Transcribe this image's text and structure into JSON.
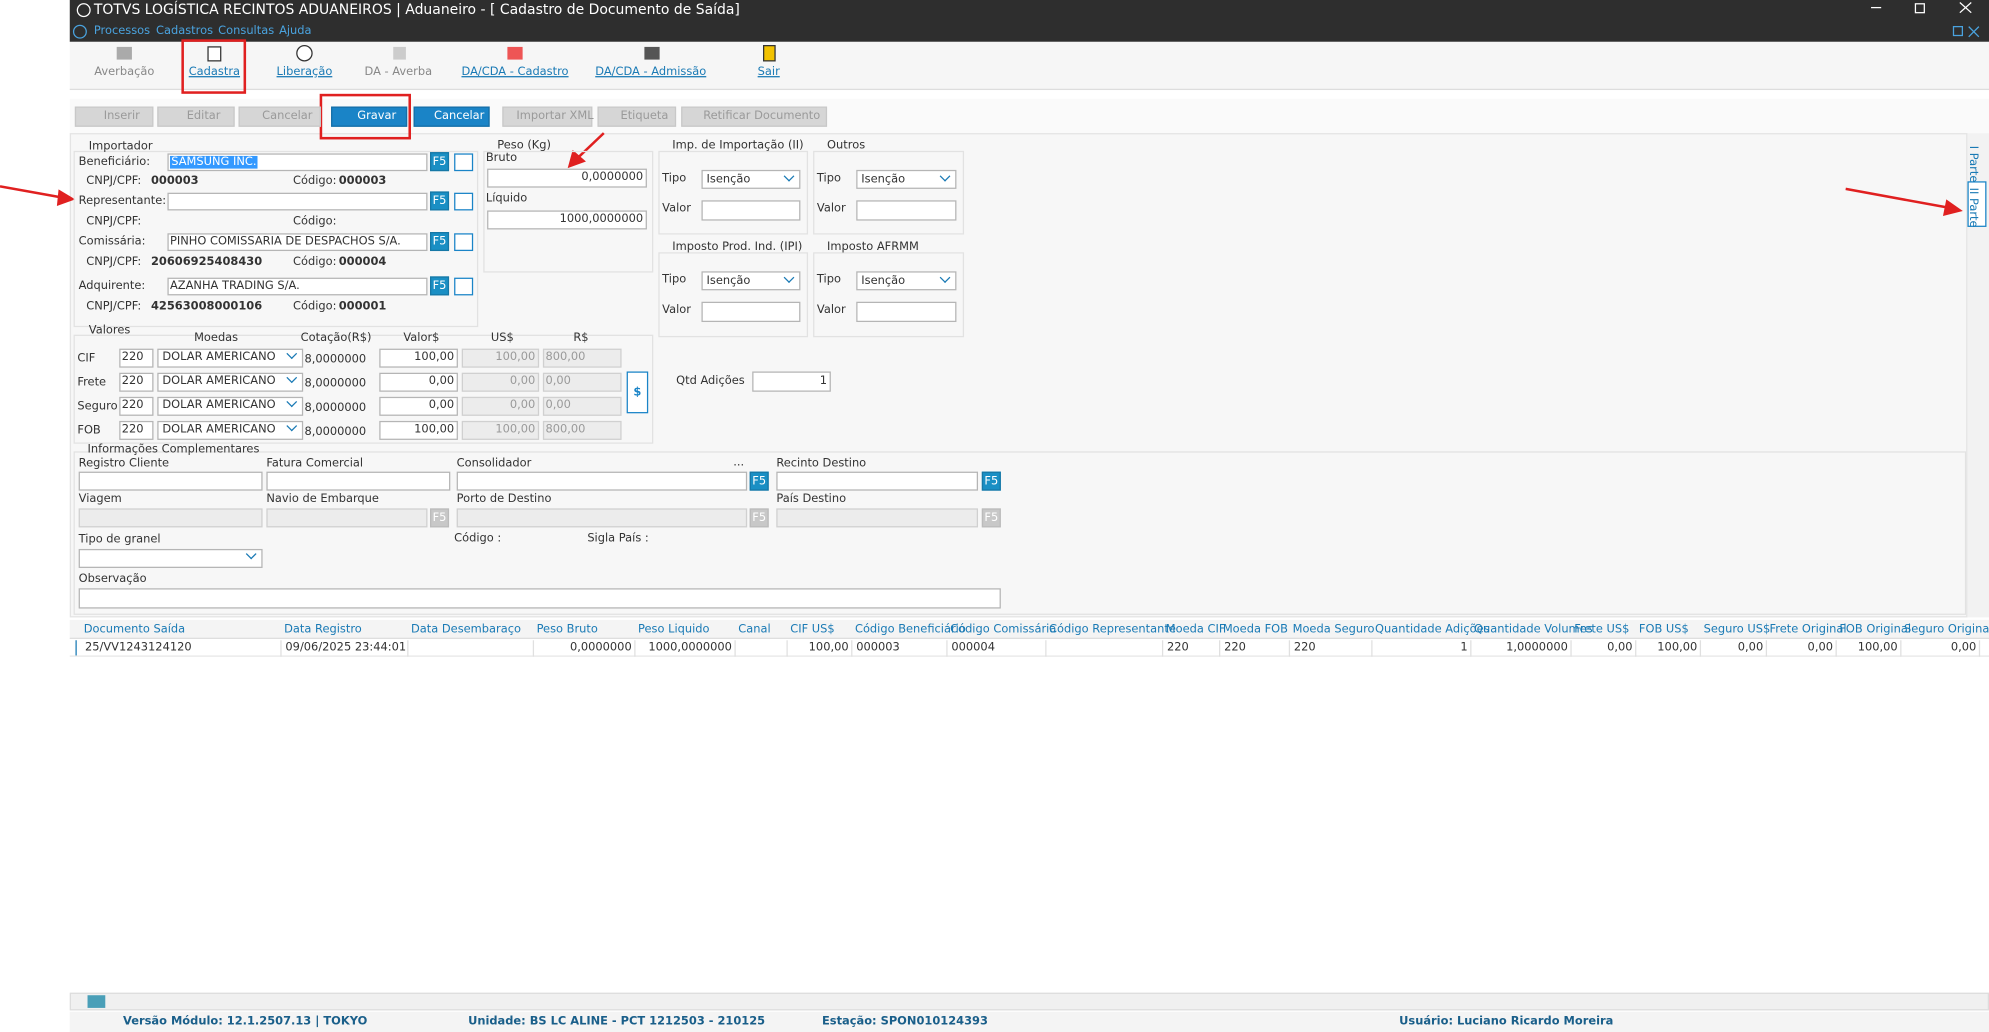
{
  "window": {
    "title": "TOTVS LOGÍSTICA RECINTOS ADUANEIROS | Aduaneiro - [ Cadastro de Documento de Saída]",
    "menu": [
      "Processos",
      "Cadastros",
      "Consultas",
      "Ajuda"
    ]
  },
  "toolbar": [
    "Averbação",
    "Cadastra",
    "Liberação",
    "DA - Averba",
    "DA/CDA - Cadastro",
    "DA/CDA - Admissão",
    "Sair"
  ],
  "actions": [
    "Inserir",
    "Editar",
    "Cancelar",
    "Gravar",
    "Cancelar",
    "Importar XML",
    "Etiqueta",
    "Retificar Documento"
  ],
  "common": {
    "f5": "F5",
    "cnpj": "CNPJ/CPF:",
    "codigo": "Código:",
    "tipo": "Tipo",
    "valor": "Valor",
    "isencao": "Isenção",
    "money_button": "$"
  },
  "importador": {
    "title": "Importador",
    "rows": [
      {
        "label": "Beneficiário:",
        "name": "SAMSUNG INC.",
        "cnpj": "000003",
        "codigo": "000003"
      },
      {
        "label": "Representante:"
      },
      {
        "label": "Comissária:",
        "name": "PINHO COMISSARIA DE DESPACHOS S/A.",
        "cnpj": "20606925408430",
        "codigo": "000004"
      },
      {
        "label": "Adquirente:",
        "name": "AZANHA TRADING S/A.",
        "cnpj": "42563008000106",
        "codigo": "000001"
      }
    ]
  },
  "peso": {
    "title": "Peso (Kg)",
    "bruto_label": "Bruto",
    "bruto": "0,0000000",
    "liquido_label": "Líquido",
    "liquido": "1000,0000000"
  },
  "impostos": [
    {
      "title": "Imp. de Importação (II)"
    },
    {
      "title": "Outros"
    },
    {
      "title": "Imposto Prod. Ind. (IPI)"
    },
    {
      "title": "Imposto AFRMM"
    }
  ],
  "valores": {
    "title": "Valores",
    "headers": [
      "Moedas",
      "Cotação(R$)",
      "Valor$",
      "US$",
      "R$"
    ],
    "rows": [
      {
        "label": "CIF",
        "codigo": "220",
        "moeda": "DOLAR AMERICANO",
        "cotacao": "8,0000000",
        "valor": "100,00",
        "usd": "100,00",
        "brl": "800,00"
      },
      {
        "label": "Frete",
        "codigo": "220",
        "moeda": "DOLAR AMERICANO",
        "cotacao": "8,0000000",
        "valor": "0,00",
        "usd": "0,00",
        "brl": "0,00"
      },
      {
        "label": "Seguro",
        "codigo": "220",
        "moeda": "DOLAR AMERICANO",
        "cotacao": "8,0000000",
        "valor": "0,00",
        "usd": "0,00",
        "brl": "0,00"
      },
      {
        "label": "FOB",
        "codigo": "220",
        "moeda": "DOLAR AMERICANO",
        "cotacao": "8,0000000",
        "valor": "100,00",
        "usd": "100,00",
        "brl": "800,00"
      }
    ]
  },
  "qtd_adicoes": {
    "label": "Qtd Adições",
    "value": "1"
  },
  "complementares": {
    "title": "Informações Complementares",
    "fields": [
      "Registro Cliente",
      "Fatura Comercial",
      "Consolidador",
      "Recinto Destino",
      "Viagem",
      "Navio de Embarque",
      "Porto de Destino",
      "País Destino",
      "Tipo de granel",
      "Código :",
      "Sigla País :",
      "Observação"
    ],
    "ellipsis": "..."
  },
  "grid": {
    "headers": [
      "Documento Saída",
      "Data Registro",
      "Data  Desembaraço",
      "Peso Bruto",
      "Peso Liquido",
      "Canal",
      "CIF US$",
      "Código Beneficiário",
      "Código Comissária",
      "Código Representante",
      "Moeda CIF",
      "Moeda FOB",
      "Moeda Seguro",
      "Quantidade Adições",
      "Quantidade Volumes",
      "Frete US$",
      "FOB US$",
      "Seguro US$",
      "Frete Original",
      "FOB Original",
      "Seguro Original"
    ],
    "rows": [
      [
        "25/VV1243124120",
        "09/06/2025 23:44:01",
        null,
        "0,0000000",
        "1000,0000000",
        null,
        "100,00",
        "000003",
        "000004",
        null,
        "220",
        "220",
        "220",
        "1",
        "1,0000000",
        "0,00",
        "100,00",
        "0,00",
        "0,00",
        "100,00",
        "0,00"
      ]
    ]
  },
  "tabs": [
    "I Parte",
    "II Parte"
  ],
  "status": [
    "Versão Módulo:  12.1.2507.13  |  TOKYO",
    "Unidade: BS LC ALINE - PCT 1212503 - 210125",
    "Estação: SPON010124393",
    "Usuário: Luciano Ricardo Moreira"
  ]
}
